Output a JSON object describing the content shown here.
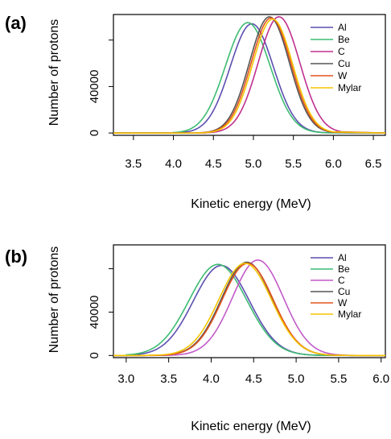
{
  "colors": {
    "Al": "#5b4fb0",
    "Be": "#3dbb72",
    "C": "#c0308f",
    "Cu": "#555555",
    "W": "#e2531f",
    "Mylar": "#f5c400",
    "C_b": "#c25ac8"
  },
  "chart_data": [
    {
      "panel_label": "(a)",
      "type": "line",
      "ylabel": "Number of protons",
      "xlabel": "Kinetic energy (MeV)",
      "xlim": [
        3.25,
        6.65
      ],
      "ylim": [
        -2000,
        102000
      ],
      "xticks": [
        "3.5",
        "4.0",
        "4.5",
        "5.0",
        "5.5",
        "6.0",
        "6.5"
      ],
      "xtick_values": [
        3.5,
        4.0,
        4.5,
        5.0,
        5.5,
        6.0,
        6.5
      ],
      "yticks": [
        "0",
        "40000"
      ],
      "ytick_values": [
        0,
        40000
      ],
      "hidden_ytick_values": [
        80000
      ],
      "legend": {
        "placement": "top-right",
        "entries": [
          "Al",
          "Be",
          "C",
          "Cu",
          "W",
          "Mylar"
        ]
      },
      "series": [
        {
          "name": "Al",
          "color_key": "Al",
          "peak": 4.98,
          "sigma": 0.27,
          "amplitude": 94000,
          "range": [
            4.1,
            5.9
          ]
        },
        {
          "name": "Be",
          "color_key": "Be",
          "peak": 4.93,
          "sigma": 0.28,
          "amplitude": 95000,
          "range": [
            4.0,
            5.9
          ]
        },
        {
          "name": "C",
          "color_key": "C",
          "peak": 5.32,
          "sigma": 0.26,
          "amplitude": 100000,
          "range": [
            4.4,
            6.1
          ]
        },
        {
          "name": "Cu",
          "color_key": "Cu",
          "peak": 5.2,
          "sigma": 0.25,
          "amplitude": 100000,
          "range": [
            4.3,
            6.0
          ]
        },
        {
          "name": "W",
          "color_key": "W",
          "peak": 5.22,
          "sigma": 0.25,
          "amplitude": 99000,
          "range": [
            4.3,
            6.0
          ]
        },
        {
          "name": "Mylar",
          "color_key": "Mylar",
          "peak": 5.24,
          "sigma": 0.25,
          "amplitude": 98000,
          "range": [
            4.3,
            6.0
          ]
        }
      ]
    },
    {
      "panel_label": "(b)",
      "type": "line",
      "ylabel": "Number of protons",
      "xlabel": "Kinetic energy (MeV)",
      "xlim": [
        2.85,
        6.05
      ],
      "ylim": [
        -2000,
        102000
      ],
      "xticks": [
        "3.0",
        "3.5",
        "4.0",
        "4.5",
        "5.0",
        "5.5",
        "6.0"
      ],
      "xtick_values": [
        3.0,
        3.5,
        4.0,
        4.5,
        5.0,
        5.5,
        6.0
      ],
      "yticks": [
        "0",
        "40000"
      ],
      "ytick_values": [
        0,
        40000
      ],
      "hidden_ytick_values": [
        80000
      ],
      "legend": {
        "placement": "top-right",
        "entries": [
          "Al",
          "Be",
          "C",
          "Cu",
          "W",
          "Mylar"
        ]
      },
      "series": [
        {
          "name": "Al",
          "color_key": "Al",
          "peak": 4.12,
          "sigma": 0.33,
          "amplitude": 83000,
          "range": [
            3.0,
            5.4
          ]
        },
        {
          "name": "Be",
          "color_key": "Be",
          "peak": 4.08,
          "sigma": 0.34,
          "amplitude": 84000,
          "range": [
            3.0,
            5.4
          ]
        },
        {
          "name": "C",
          "color_key": "C_b",
          "peak": 4.55,
          "sigma": 0.3,
          "amplitude": 88000,
          "range": [
            3.3,
            5.8
          ]
        },
        {
          "name": "Cu",
          "color_key": "Cu",
          "peak": 4.42,
          "sigma": 0.3,
          "amplitude": 86000,
          "range": [
            3.2,
            5.7
          ]
        },
        {
          "name": "W",
          "color_key": "W",
          "peak": 4.43,
          "sigma": 0.3,
          "amplitude": 85000,
          "range": [
            3.2,
            5.7
          ]
        },
        {
          "name": "Mylar",
          "color_key": "Mylar",
          "peak": 4.4,
          "sigma": 0.31,
          "amplitude": 85000,
          "range": [
            3.2,
            5.7
          ]
        }
      ]
    }
  ]
}
